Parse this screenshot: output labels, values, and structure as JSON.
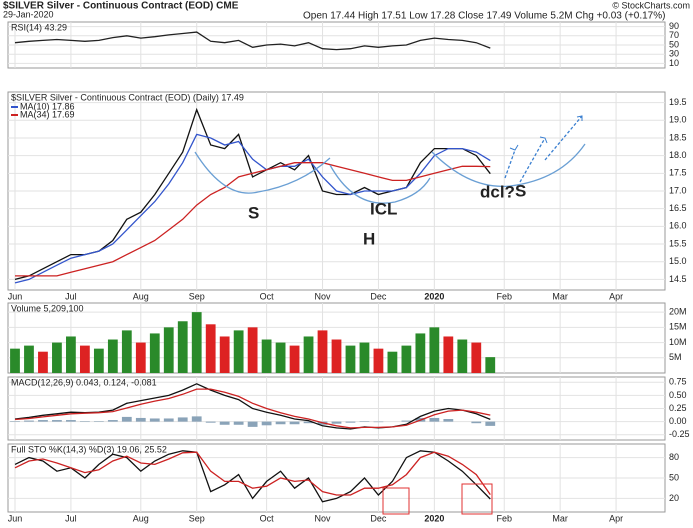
{
  "header": {
    "symbol": "$SILVER Silver - Continuous Contract (EOD) CME",
    "date": "29-Jan-2020",
    "quote": "Open 17.44 High 17.51 Low 17.28 Close 17.49 Volume 5.2M Chg +0.03 (+0.17%)",
    "credit": "© StockCharts.com"
  },
  "chart_data": [
    {
      "type": "line",
      "title": "RSI(14) 43.29",
      "ylim": [
        0,
        100
      ],
      "yticks": [
        10,
        30,
        50,
        70,
        90
      ],
      "grid": true,
      "series": [
        {
          "color": "#222",
          "values": [
            55,
            58,
            60,
            62,
            60,
            58,
            60,
            66,
            70,
            65,
            68,
            72,
            75,
            78,
            58,
            55,
            60,
            45,
            50,
            52,
            48,
            55,
            42,
            40,
            42,
            48,
            45,
            48,
            50,
            60,
            65,
            62,
            60,
            55,
            43.29,
            null,
            null,
            null,
            null,
            null,
            null,
            null,
            null,
            null,
            null,
            null,
            null
          ]
        }
      ]
    },
    {
      "type": "line",
      "title": "$SILVER Silver - Continuous Contract (EOD) (Daily) 17.49",
      "categories": [
        "Jun",
        null,
        null,
        null,
        "Jul",
        null,
        null,
        null,
        null,
        "Aug",
        null,
        null,
        null,
        "Sep",
        null,
        null,
        null,
        null,
        "Oct",
        null,
        null,
        null,
        "Nov",
        null,
        null,
        null,
        "Dec",
        null,
        null,
        null,
        "2020",
        null,
        null,
        null,
        null,
        "Feb",
        null,
        null,
        null,
        "Mar",
        null,
        null,
        null,
        "Apr",
        null,
        null,
        null
      ],
      "ylim": [
        14.2,
        19.8
      ],
      "yticks": [
        14.5,
        {
          "value": 15,
          "label": "15.0"
        },
        15.5,
        {
          "value": 16,
          "label": "16.0"
        },
        16.5,
        {
          "value": 17,
          "label": "17.0"
        },
        17.5,
        {
          "value": 18,
          "label": "18.0"
        },
        18.5,
        {
          "value": 19,
          "label": "19.0"
        },
        19.5
      ],
      "grid": true,
      "annotations": [
        "S",
        "H",
        "S",
        "ICL",
        "dcl?"
      ],
      "series": [
        {
          "color": "#111",
          "values": [
            14.5,
            14.6,
            14.8,
            15.0,
            15.2,
            15.2,
            15.3,
            15.6,
            16.2,
            16.4,
            16.9,
            17.5,
            18.1,
            19.3,
            18.3,
            18.2,
            18.6,
            17.4,
            17.6,
            17.8,
            17.6,
            18.0,
            17.0,
            16.9,
            16.9,
            17.1,
            16.9,
            17.0,
            17.1,
            17.8,
            18.2,
            18.2,
            18.2,
            18.0,
            17.49,
            null,
            null,
            null,
            null,
            null,
            null,
            null,
            null,
            null,
            null,
            null,
            null
          ]
        },
        {
          "name": "MA(10) 17.86",
          "color": "#3355cc",
          "values": [
            14.4,
            14.5,
            14.7,
            14.9,
            15.1,
            15.2,
            15.3,
            15.5,
            15.9,
            16.3,
            16.7,
            17.2,
            17.8,
            18.6,
            18.5,
            18.3,
            18.4,
            17.9,
            17.6,
            17.7,
            17.7,
            17.9,
            17.4,
            17.0,
            16.9,
            17.0,
            17.0,
            17.0,
            17.1,
            17.5,
            18.0,
            18.2,
            18.2,
            18.1,
            17.86,
            null,
            null,
            null,
            null,
            null,
            null,
            null,
            null,
            null,
            null,
            null,
            null
          ]
        },
        {
          "name": "MA(34) 17.69",
          "color": "#cc2222",
          "values": [
            14.6,
            14.6,
            14.6,
            14.6,
            14.7,
            14.8,
            14.9,
            15.0,
            15.2,
            15.4,
            15.6,
            15.9,
            16.2,
            16.6,
            16.9,
            17.1,
            17.4,
            17.5,
            17.6,
            17.7,
            17.8,
            17.8,
            17.8,
            17.7,
            17.6,
            17.5,
            17.4,
            17.3,
            17.3,
            17.4,
            17.5,
            17.6,
            17.7,
            17.7,
            17.69,
            null,
            null,
            null,
            null,
            null,
            null,
            null,
            null,
            null,
            null,
            null,
            null
          ]
        }
      ]
    },
    {
      "type": "bar",
      "title": "Volume 5,209,100",
      "ylim": [
        0,
        23000000
      ],
      "yticks": [
        {
          "value": 5000000,
          "label": "5M"
        },
        {
          "value": 10000000,
          "label": "10M"
        },
        {
          "value": 15000000,
          "label": "15M"
        },
        {
          "value": 20000000,
          "label": "20M"
        }
      ],
      "grid": true,
      "series": [
        {
          "color": "#2a8a2a",
          "colors": [
            "#2a8a2a",
            "#2a8a2a",
            "#d22",
            "#2a8a2a",
            "#2a8a2a",
            "#d22",
            "#2a8a2a",
            "#2a8a2a",
            "#2a8a2a",
            "#d22",
            "#2a8a2a",
            "#2a8a2a",
            "#2a8a2a",
            "#2a8a2a",
            "#d22",
            "#d22",
            "#2a8a2a",
            "#d22",
            "#2a8a2a",
            "#2a8a2a",
            "#d22",
            "#2a8a2a",
            "#d22",
            "#d22",
            "#2a8a2a",
            "#2a8a2a",
            "#d22",
            "#2a8a2a",
            "#2a8a2a",
            "#2a8a2a",
            "#2a8a2a",
            "#d22",
            "#2a8a2a",
            "#d22",
            "#2a8a2a"
          ],
          "values": [
            8000000,
            9000000,
            7000000,
            10000000,
            12000000,
            9000000,
            8000000,
            11000000,
            14000000,
            10000000,
            13000000,
            15000000,
            17000000,
            20000000,
            16000000,
            12000000,
            14000000,
            15000000,
            11000000,
            10000000,
            9000000,
            12000000,
            14000000,
            11000000,
            9000000,
            10000000,
            8000000,
            7000000,
            9000000,
            13000000,
            15000000,
            12000000,
            11000000,
            10000000,
            5209100,
            null,
            null,
            null,
            null,
            null,
            null,
            null,
            null,
            null,
            null,
            null,
            null
          ]
        }
      ]
    },
    {
      "type": "line",
      "title": "MACD(12,26,9) 0.043, 0.124, -0.081",
      "ylim": [
        -0.35,
        0.85
      ],
      "yticks": [
        -0.25,
        {
          "value": 0,
          "label": "0.00"
        },
        0.25,
        {
          "value": 0.5,
          "label": "0.50"
        },
        0.75
      ],
      "grid": true,
      "series": [
        {
          "type": "bar",
          "color": "#8aa3b8",
          "values": [
            0.01,
            0.02,
            0.03,
            0.03,
            0.03,
            0.01,
            0.01,
            0.03,
            0.09,
            0.07,
            0.06,
            0.06,
            0.08,
            0.1,
            -0.02,
            -0.06,
            -0.06,
            -0.1,
            -0.07,
            -0.05,
            -0.05,
            -0.03,
            -0.06,
            -0.04,
            -0.02,
            0.01,
            -0.01,
            0,
            0.02,
            0.07,
            0.07,
            0.05,
            0,
            -0.03,
            -0.081,
            null,
            null,
            null,
            null,
            null,
            null,
            null,
            null,
            null,
            null,
            null,
            null
          ]
        },
        {
          "color": "#111",
          "values": [
            0.05,
            0.08,
            0.12,
            0.15,
            0.18,
            0.17,
            0.18,
            0.22,
            0.35,
            0.4,
            0.45,
            0.5,
            0.6,
            0.72,
            0.6,
            0.5,
            0.42,
            0.25,
            0.18,
            0.12,
            0.05,
            0.02,
            -0.08,
            -0.12,
            -0.14,
            -0.1,
            -0.12,
            -0.1,
            -0.05,
            0.1,
            0.2,
            0.25,
            0.22,
            0.15,
            0.043,
            null,
            null,
            null,
            null,
            null,
            null,
            null,
            null,
            null,
            null,
            null,
            null
          ]
        },
        {
          "color": "#cc2222",
          "values": [
            0.04,
            0.06,
            0.09,
            0.12,
            0.15,
            0.16,
            0.17,
            0.19,
            0.26,
            0.33,
            0.39,
            0.44,
            0.52,
            0.62,
            0.62,
            0.56,
            0.48,
            0.35,
            0.25,
            0.17,
            0.1,
            0.05,
            -0.02,
            -0.08,
            -0.12,
            -0.11,
            -0.11,
            -0.1,
            -0.07,
            0.03,
            0.13,
            0.2,
            0.22,
            0.18,
            0.124,
            null,
            null,
            null,
            null,
            null,
            null,
            null,
            null,
            null,
            null,
            null,
            null
          ]
        }
      ]
    },
    {
      "type": "line",
      "title": "Full STO %K(14,3) %D(3) 19.06, 25.52",
      "ylim": [
        0,
        100
      ],
      "yticks": [
        20,
        50,
        80
      ],
      "grid": true,
      "series": [
        {
          "color": "#111",
          "values": [
            70,
            80,
            75,
            60,
            65,
            50,
            70,
            85,
            80,
            60,
            75,
            85,
            90,
            88,
            30,
            40,
            55,
            20,
            45,
            60,
            35,
            50,
            15,
            20,
            30,
            50,
            25,
            45,
            80,
            90,
            88,
            75,
            60,
            40,
            19.06,
            null,
            null,
            null,
            null,
            null,
            null,
            null,
            null,
            null,
            null,
            null,
            null
          ]
        },
        {
          "color": "#cc2222",
          "values": [
            65,
            75,
            78,
            72,
            65,
            58,
            62,
            75,
            82,
            72,
            70,
            78,
            87,
            88,
            60,
            45,
            45,
            35,
            38,
            50,
            45,
            47,
            30,
            25,
            25,
            35,
            35,
            40,
            55,
            80,
            88,
            82,
            70,
            55,
            25.52,
            null,
            null,
            null,
            null,
            null,
            null,
            null,
            null,
            null,
            null,
            null,
            null
          ]
        }
      ]
    }
  ]
}
